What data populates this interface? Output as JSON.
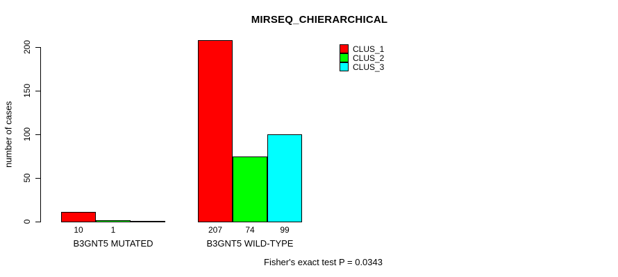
{
  "chart_data": {
    "type": "bar",
    "title": "MIRSEQ_CHIERARCHICAL",
    "ylabel": "number of cases",
    "xlabel": "",
    "ylim": [
      0,
      200
    ],
    "yticks": [
      0,
      50,
      100,
      150,
      200
    ],
    "grid": false,
    "legend": {
      "position": "top-right",
      "entries": [
        {
          "label": "CLUS_1",
          "color": "#FF0000"
        },
        {
          "label": "CLUS_2",
          "color": "#00FF00"
        },
        {
          "label": "CLUS_3",
          "color": "#00FFFF"
        }
      ]
    },
    "groups": [
      {
        "label": "B3GNT5 MUTATED",
        "bars": [
          {
            "series": "CLUS_1",
            "value": 10,
            "value_label": "10",
            "color": "#FF0000"
          },
          {
            "series": "CLUS_2",
            "value": 1,
            "value_label": "1",
            "color": "#00FF00"
          },
          {
            "series": "CLUS_3",
            "value": 0,
            "value_label": "",
            "color": "#00FFFF"
          }
        ]
      },
      {
        "label": "B3GNT5 WILD-TYPE",
        "bars": [
          {
            "series": "CLUS_1",
            "value": 207,
            "value_label": "207",
            "color": "#FF0000"
          },
          {
            "series": "CLUS_2",
            "value": 74,
            "value_label": "74",
            "color": "#00FF00"
          },
          {
            "series": "CLUS_3",
            "value": 99,
            "value_label": "99",
            "color": "#00FFFF"
          }
        ]
      }
    ],
    "footnote": "Fisher's exact test P = 0.0343"
  },
  "colors": {
    "background": "#FFFFFF",
    "axis": "#000000",
    "text": "#000000",
    "bar_border": "#000000"
  }
}
